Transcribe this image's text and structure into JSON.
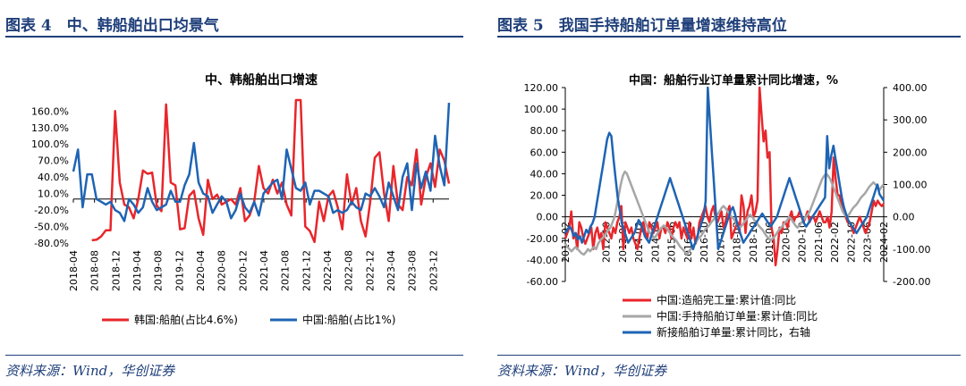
{
  "left": {
    "figure_title": "图表 4　中、韩船舶出口均景气",
    "source": "资料来源：Wind，华创证券"
  },
  "right": {
    "figure_title": "图表 5　我国手持船舶订单量增速维持高位",
    "source": "资料来源：Wind，华创证券"
  },
  "chart_data": [
    {
      "type": "line",
      "title": "中、韩船舶出口增速",
      "xlabel": "",
      "ylabel": "",
      "ylim": [
        -80,
        180
      ],
      "y_ticks": [
        "160.0%",
        "130.0%",
        "100.0%",
        "70.0%",
        "40.0%",
        "10.0%",
        "-20.0%",
        "-50.0%",
        "-80.0%"
      ],
      "y_tick_values": [
        160,
        130,
        100,
        70,
        40,
        10,
        -20,
        -50,
        -80
      ],
      "x_ticks": [
        "2018-04",
        "2018-08",
        "2018-12",
        "2019-04",
        "2019-08",
        "2019-12",
        "2020-04",
        "2020-08",
        "2020-12",
        "2021-04",
        "2021-08",
        "2021-12",
        "2022-04",
        "2022-08",
        "2022-12",
        "2023-04",
        "2023-08",
        "2023-12"
      ],
      "x_start": "2018-04",
      "x_end": "2024-03",
      "legend": "bottom",
      "series": [
        {
          "name": "韩国:船舶(占比4.6%)",
          "color": "#E8262B",
          "values": [
            null,
            null,
            null,
            null,
            -75,
            -74,
            -68,
            -57,
            -57,
            160,
            30,
            -10,
            -15,
            -35,
            0,
            52,
            46,
            48,
            -12,
            -22,
            172,
            30,
            25,
            -55,
            -53,
            6,
            15,
            -35,
            -65,
            35,
            0,
            8,
            -10,
            -5,
            0,
            -10,
            20,
            -40,
            -30,
            -5,
            60,
            20,
            10,
            35,
            10,
            30,
            -10,
            -30,
            180,
            180,
            -50,
            -58,
            -78,
            -5,
            -40,
            5,
            15,
            -15,
            -55,
            45,
            -10,
            20,
            -40,
            -68,
            -5,
            75,
            85,
            10,
            -40,
            60,
            -10,
            -20,
            40,
            25,
            90,
            -10,
            40,
            65,
            22,
            90,
            70,
            28
          ]
        },
        {
          "name": "中国:船舶(占比1%)",
          "color": "#1E64B4",
          "values": [
            50,
            90,
            -15,
            45,
            45,
            0,
            -5,
            -10,
            -5,
            -20,
            -25,
            -40,
            0,
            -10,
            -25,
            -15,
            20,
            -5,
            -20,
            -15,
            -10,
            15,
            -5,
            -5,
            25,
            45,
            102,
            30,
            10,
            5,
            -25,
            -10,
            5,
            -5,
            -35,
            -20,
            10,
            -15,
            -25,
            -5,
            -30,
            10,
            20,
            30,
            35,
            0,
            90,
            55,
            20,
            15,
            30,
            -10,
            15,
            15,
            10,
            5,
            -25,
            -20,
            -25,
            -20,
            -5,
            -15,
            -20,
            10,
            5,
            20,
            5,
            -15,
            30,
            5,
            -20,
            40,
            65,
            -20,
            65,
            20,
            50,
            15,
            115,
            60,
            25,
            175
          ]
        }
      ]
    },
    {
      "type": "line",
      "title": "中国：船舶行业订单量累计同比增速，%",
      "xlabel": "",
      "ylabel": "",
      "ylim": [
        -60,
        120
      ],
      "y2lim": [
        -200,
        400
      ],
      "y_ticks": [
        "120.00",
        "100.00",
        "80.00",
        "60.00",
        "40.00",
        "20.00",
        "0.00",
        "-20.00",
        "-40.00",
        "-60.00"
      ],
      "y_tick_values": [
        120,
        100,
        80,
        60,
        40,
        20,
        0,
        -20,
        -40,
        -60
      ],
      "y2_ticks": [
        "400.00",
        "300.00",
        "200.00",
        "100.00",
        "0.00",
        "-100.00",
        "-200.00"
      ],
      "y2_tick_values": [
        400,
        300,
        200,
        100,
        0,
        -100,
        -200
      ],
      "x_ticks": [
        "2011-02",
        "2012-10",
        "2013-06",
        "2014-02",
        "2014-10",
        "2015-06",
        "2016-02",
        "2016-10",
        "2017-06",
        "2018-02",
        "2018-10",
        "2019-06",
        "2020-02",
        "2020-10",
        "2021-06",
        "2022-02",
        "2022-10",
        "2023-06",
        "2024-02"
      ],
      "x_start": "2011-02",
      "x_end": "2024-02",
      "legend": "bottom",
      "series": [
        {
          "name": "中国:造船完工量:累计值:同比",
          "axis": "left",
          "color": "#E8262B",
          "values": [
            -20,
            -15,
            -10,
            5,
            -20,
            -15,
            -30,
            -5,
            -10,
            -20,
            -25,
            -20,
            -15,
            -10,
            -30,
            -15,
            -10,
            -20,
            -15,
            -30,
            -5,
            -10,
            -15,
            -20,
            -10,
            -15,
            -5,
            0,
            10,
            -30,
            -5,
            -10,
            -15,
            -10,
            -20,
            -25,
            -30,
            -20,
            -10,
            -5,
            -15,
            -20,
            -5,
            -10,
            -15,
            -10,
            -5,
            -20,
            -10,
            -10,
            -15,
            -5,
            -10,
            -20,
            -10,
            -5,
            -10,
            -5,
            -20,
            -10,
            -15,
            -20,
            -5,
            -20,
            -10,
            -25,
            -20,
            -5,
            0,
            5,
            10,
            0,
            -5,
            5,
            10,
            0,
            -5,
            0,
            5,
            -10,
            -5,
            5,
            10,
            -20,
            -15,
            -10,
            -5,
            -15,
            20,
            10,
            -15,
            5,
            10,
            20,
            0,
            5,
            15,
            120,
            95,
            70,
            80,
            55,
            60,
            -10,
            -20,
            -45,
            -30,
            -10,
            -15,
            -5,
            -5,
            -10,
            0,
            5,
            -5,
            0,
            0,
            5,
            0,
            -5,
            0,
            5,
            -5,
            0,
            0,
            -5,
            0,
            5,
            0,
            -5,
            -5,
            0,
            -10,
            5,
            55,
            35,
            20,
            20,
            10,
            5,
            0,
            -5,
            -5,
            -10,
            -15,
            -10,
            -5,
            0,
            -5,
            -10,
            -15,
            -10,
            -5,
            5,
            15,
            10,
            15,
            12,
            10,
            12
          ]
        },
        {
          "name": "中国:手持船舶订单量:累计值:同比",
          "axis": "left",
          "color": "#A6A6A6",
          "values": [
            -25,
            -28,
            -30,
            -32,
            -30,
            -28,
            -30,
            -32,
            -34,
            -35,
            -33,
            -30,
            -32,
            -30,
            -28,
            -30,
            -25,
            -22,
            -20,
            -18,
            -15,
            -12,
            -10,
            -5,
            0,
            10,
            20,
            30,
            38,
            42,
            40,
            35,
            30,
            25,
            20,
            15,
            10,
            5,
            0,
            -5,
            -10,
            -15,
            -15,
            -20,
            -18,
            -15,
            -12,
            -10,
            -8,
            -10,
            -12,
            -15,
            -18,
            -20,
            -22,
            -25,
            -28,
            -30,
            -32,
            -35,
            -33,
            -30,
            -28,
            -25,
            -22,
            -20,
            -18,
            -15,
            -12,
            -10,
            -8,
            -5,
            -3,
            0,
            2,
            5,
            8,
            10,
            8,
            5,
            2,
            0,
            -2,
            -5,
            -8,
            -10,
            -8,
            -5,
            -3,
            0,
            2,
            0,
            -3,
            -5,
            -8,
            -10,
            -12,
            -15,
            -18,
            -20,
            -22,
            -20,
            -18,
            -15,
            -12,
            -10,
            -8,
            -5,
            -3,
            0,
            -2,
            -5,
            -8,
            -10,
            -8,
            -5,
            -3,
            0,
            2,
            5,
            10,
            15,
            20,
            25,
            30,
            35,
            38,
            40,
            38,
            35,
            30,
            25,
            20,
            15,
            10,
            5,
            2,
            0,
            2,
            5,
            8,
            10,
            12,
            15,
            18,
            20,
            22,
            25,
            28,
            30,
            32,
            30,
            28,
            25,
            28,
            30
          ]
        },
        {
          "name": "新接船舶订单量:累计同比，右轴",
          "axis": "right",
          "color": "#1E64B4",
          "values": [
            -50,
            -40,
            -30,
            -40,
            -60,
            -50,
            -70,
            -60,
            -80,
            -60,
            -40,
            -50,
            -30,
            -20,
            0,
            40,
            80,
            120,
            160,
            200,
            240,
            260,
            250,
            180,
            120,
            60,
            20,
            -20,
            -40,
            -60,
            -80,
            -70,
            -60,
            -50,
            -30,
            -10,
            -20,
            -40,
            -60,
            -70,
            -80,
            -60,
            -40,
            -20,
            0,
            20,
            40,
            60,
            80,
            100,
            120,
            100,
            80,
            60,
            40,
            20,
            0,
            -20,
            -40,
            -60,
            -80,
            -100,
            -80,
            -60,
            -40,
            -20,
            0,
            50,
            400,
            300,
            200,
            100,
            0,
            -100,
            -80,
            -60,
            -40,
            -20,
            0,
            20,
            30,
            10,
            -20,
            -40,
            -60,
            -80,
            -70,
            -60,
            -50,
            -40,
            -30,
            -20,
            -10,
            0,
            10,
            0,
            -10,
            -20,
            -30,
            -20,
            -10,
            0,
            20,
            40,
            60,
            80,
            100,
            120,
            100,
            80,
            60,
            40,
            20,
            0,
            -20,
            -30,
            -20,
            -10,
            0,
            10,
            20,
            30,
            40,
            50,
            60,
            250,
            150,
            190,
            220,
            180,
            140,
            100,
            60,
            30,
            10,
            -10,
            -20,
            -30,
            -40,
            -50,
            -40,
            -30,
            -20,
            -10,
            0,
            20,
            40,
            60,
            80,
            100,
            70,
            60,
            50
          ]
        }
      ]
    }
  ]
}
